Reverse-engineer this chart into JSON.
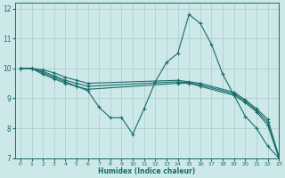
{
  "xlabel": "Humidex (Indice chaleur)",
  "bg_color": "#cce8e8",
  "grid_color": "#b0d0d0",
  "line_color": "#1a6b6b",
  "xlim": [
    -0.5,
    23
  ],
  "ylim": [
    7,
    12.2
  ],
  "yticks": [
    7,
    8,
    9,
    10,
    11,
    12
  ],
  "xticks": [
    0,
    1,
    2,
    3,
    4,
    5,
    6,
    7,
    8,
    9,
    10,
    11,
    12,
    13,
    14,
    15,
    16,
    17,
    18,
    19,
    20,
    21,
    22,
    23
  ],
  "series": [
    {
      "x": [
        0,
        1,
        2,
        3,
        4,
        5,
        6,
        7,
        8,
        9,
        10,
        11,
        12,
        13,
        14,
        15,
        16,
        17,
        18,
        19,
        20,
        21,
        22,
        23
      ],
      "y": [
        10.0,
        10.0,
        9.85,
        9.7,
        9.55,
        9.4,
        9.25,
        8.7,
        8.35,
        8.35,
        7.8,
        8.65,
        9.55,
        10.2,
        10.5,
        11.8,
        11.5,
        10.8,
        9.8,
        9.1,
        8.4,
        8.0,
        7.4,
        7.0
      ]
    },
    {
      "x": [
        0,
        1,
        2,
        3,
        4,
        5,
        6,
        14,
        15,
        16,
        19,
        20,
        21,
        22,
        23
      ],
      "y": [
        10.0,
        10.0,
        9.8,
        9.65,
        9.5,
        9.4,
        9.3,
        9.5,
        9.5,
        9.4,
        9.1,
        8.85,
        8.55,
        8.1,
        7.0
      ]
    },
    {
      "x": [
        0,
        1,
        2,
        3,
        4,
        5,
        6,
        14,
        15,
        16,
        19,
        20,
        21,
        22,
        23
      ],
      "y": [
        10.0,
        10.0,
        9.9,
        9.75,
        9.6,
        9.5,
        9.4,
        9.55,
        9.52,
        9.45,
        9.15,
        8.9,
        8.6,
        8.2,
        7.0
      ]
    },
    {
      "x": [
        0,
        1,
        2,
        3,
        4,
        5,
        6,
        14,
        15,
        16,
        19,
        20,
        21,
        22,
        23
      ],
      "y": [
        10.0,
        10.0,
        9.95,
        9.85,
        9.7,
        9.6,
        9.5,
        9.6,
        9.55,
        9.5,
        9.2,
        8.95,
        8.65,
        8.3,
        7.05
      ]
    }
  ]
}
